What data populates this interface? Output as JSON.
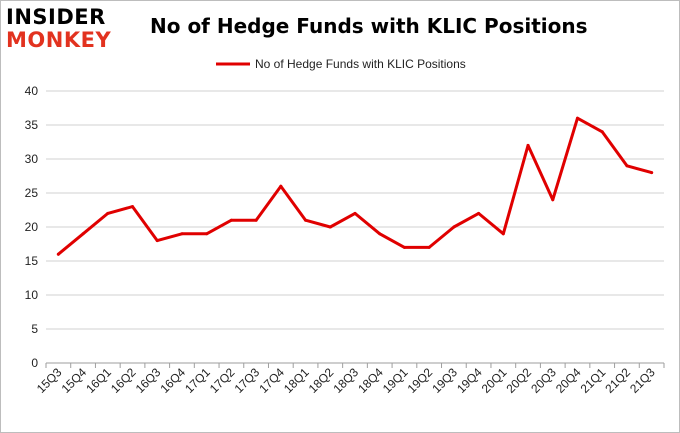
{
  "logo": {
    "line1": "INSIDER",
    "line2": "MONKEY"
  },
  "chart_data": {
    "type": "line",
    "title": "No of Hedge Funds with KLIC Positions",
    "xlabel": "",
    "ylabel": "",
    "ylim": [
      0,
      40
    ],
    "yticks": [
      0,
      5,
      10,
      15,
      20,
      25,
      30,
      35,
      40
    ],
    "grid": true,
    "legend_position": "top-center",
    "categories": [
      "15Q3",
      "15Q4",
      "16Q1",
      "16Q2",
      "16Q3",
      "16Q4",
      "17Q1",
      "17Q2",
      "17Q3",
      "17Q4",
      "18Q1",
      "18Q2",
      "18Q3",
      "18Q4",
      "19Q1",
      "19Q2",
      "19Q3",
      "19Q4",
      "20Q1",
      "20Q2",
      "20Q3",
      "20Q4",
      "21Q1",
      "21Q2",
      "21Q3"
    ],
    "series": [
      {
        "name": "No of Hedge Funds with KLIC Positions",
        "color": "#e00000",
        "values": [
          16,
          19,
          22,
          23,
          18,
          19,
          19,
          21,
          21,
          26,
          21,
          20,
          22,
          19,
          17,
          17,
          20,
          22,
          19,
          32,
          24,
          36,
          34,
          29,
          28
        ]
      }
    ]
  }
}
